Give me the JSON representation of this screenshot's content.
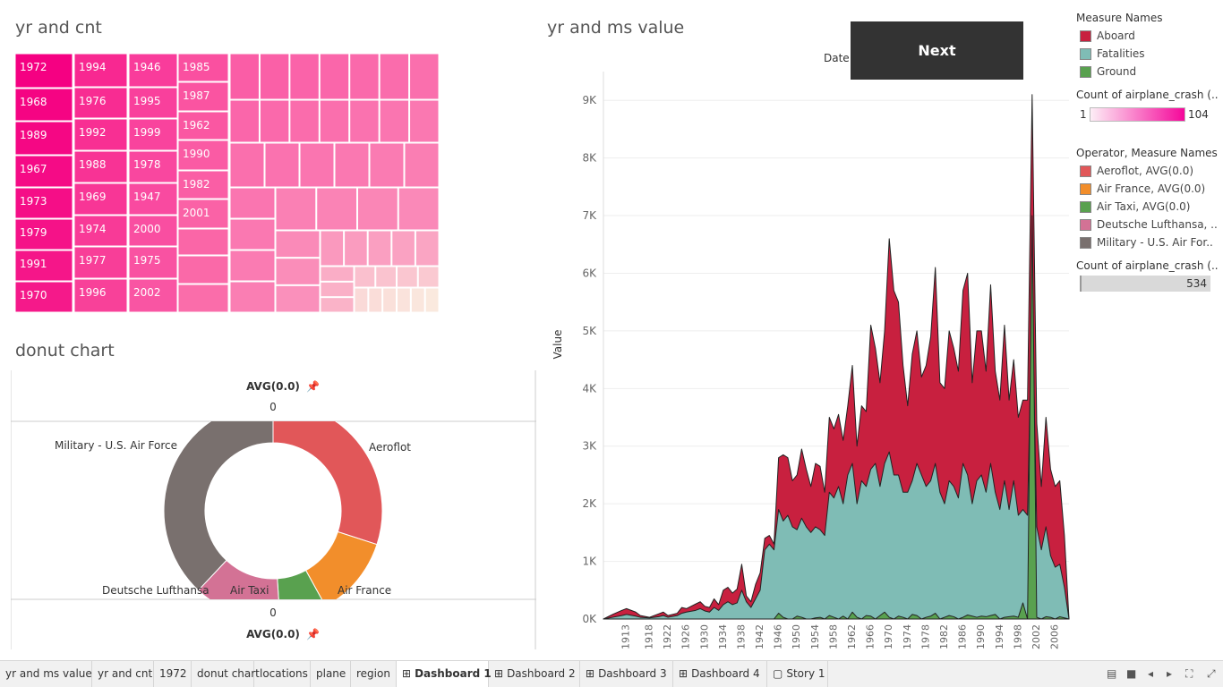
{
  "treemap": {
    "title": "yr and cnt",
    "labels": [
      "1972",
      "1968",
      "1989",
      "1967",
      "1973",
      "1979",
      "1991",
      "1970",
      "1994",
      "1976",
      "1992",
      "1988",
      "1969",
      "1974",
      "1977",
      "1996",
      "1946",
      "1995",
      "1999",
      "1978",
      "1947",
      "2000",
      "1975",
      "2002",
      "1985",
      "1987",
      "1962",
      "1990",
      "1982",
      "2001"
    ]
  },
  "donut": {
    "title": "donut chart",
    "header_label": "AVG(0.0)",
    "header_value": "0",
    "footer_value": "0",
    "footer_label": "AVG(0.0)",
    "pin_icon": "pin-icon",
    "chart_data": {
      "type": "pie",
      "categories": [
        "Aeroflot",
        "Air France",
        "Air Taxi",
        "Deutsche Lufthansa",
        "Military - U.S. Air Force"
      ],
      "values": [
        30,
        12,
        7,
        13,
        38
      ],
      "colors": [
        "#e15759",
        "#f28e2b",
        "#59a14f",
        "#d37295",
        "#79706e"
      ]
    }
  },
  "area": {
    "title": "yr and ms value",
    "date_label": "Date",
    "ylabel": "Value",
    "chart_data": {
      "type": "area",
      "x": [
        1908,
        1910,
        1912,
        1913,
        1915,
        1916,
        1918,
        1920,
        1921,
        1922,
        1924,
        1925,
        1926,
        1928,
        1929,
        1930,
        1931,
        1932,
        1933,
        1934,
        1935,
        1936,
        1937,
        1938,
        1939,
        1940,
        1941,
        1942,
        1943,
        1944,
        1945,
        1946,
        1947,
        1948,
        1949,
        1950,
        1951,
        1952,
        1953,
        1954,
        1955,
        1956,
        1957,
        1958,
        1959,
        1960,
        1961,
        1962,
        1963,
        1964,
        1965,
        1966,
        1967,
        1968,
        1969,
        1970,
        1971,
        1972,
        1973,
        1974,
        1975,
        1976,
        1977,
        1978,
        1979,
        1980,
        1981,
        1982,
        1983,
        1984,
        1985,
        1986,
        1987,
        1988,
        1989,
        1990,
        1991,
        1992,
        1993,
        1994,
        1995,
        1996,
        1997,
        1998,
        1999,
        2000,
        2001,
        2002,
        2003,
        2004,
        2005,
        2006,
        2007,
        2008,
        2009
      ],
      "ylim": [
        0,
        9500
      ],
      "yticks": [
        "0K",
        "1K",
        "2K",
        "3K",
        "4K",
        "5K",
        "6K",
        "7K",
        "8K",
        "9K"
      ],
      "xticks": [
        "1913",
        "1918",
        "1922",
        "1926",
        "1930",
        "1934",
        "1938",
        "1942",
        "1946",
        "1950",
        "1954",
        "1958",
        "1962",
        "1966",
        "1970",
        "1974",
        "1978",
        "1982",
        "1986",
        "1990",
        "1994",
        "1998",
        "2002",
        "2006"
      ],
      "series": [
        {
          "name": "Aboard",
          "color": "#c8203f",
          "values": [
            0,
            80,
            150,
            180,
            120,
            60,
            30,
            90,
            120,
            60,
            100,
            200,
            180,
            260,
            300,
            220,
            200,
            350,
            250,
            500,
            550,
            450,
            520,
            950,
            400,
            300,
            600,
            800,
            1400,
            1450,
            1300,
            2800,
            2850,
            2800,
            2400,
            2500,
            2950,
            2600,
            2300,
            2700,
            2650,
            2200,
            3500,
            3300,
            3550,
            3100,
            3700,
            4400,
            3000,
            3700,
            3600,
            5100,
            4700,
            4100,
            5000,
            6600,
            5700,
            5500,
            4400,
            3700,
            4600,
            5000,
            4200,
            4400,
            4900,
            6100,
            4100,
            4000,
            5000,
            4700,
            4300,
            5700,
            6000,
            4100,
            5000,
            5000,
            4300,
            5800,
            4300,
            3800,
            5100,
            3800,
            4500,
            3500,
            3800,
            3800,
            9100,
            3400,
            2300,
            3500,
            2600,
            2300,
            2400,
            1450,
            0
          ]
        },
        {
          "name": "Fatalities",
          "color": "#7fbcb5",
          "values": [
            0,
            30,
            60,
            80,
            50,
            30,
            20,
            40,
            60,
            30,
            60,
            100,
            120,
            150,
            180,
            140,
            120,
            200,
            150,
            250,
            300,
            250,
            280,
            500,
            300,
            200,
            350,
            500,
            1200,
            1300,
            1200,
            1900,
            1700,
            1800,
            1600,
            1550,
            1750,
            1600,
            1500,
            1600,
            1550,
            1450,
            2200,
            2100,
            2300,
            2000,
            2500,
            2700,
            2000,
            2400,
            2300,
            2600,
            2700,
            2300,
            2700,
            2900,
            2500,
            2500,
            2200,
            2200,
            2400,
            2700,
            2500,
            2300,
            2400,
            2700,
            2200,
            2000,
            2400,
            2300,
            2100,
            2700,
            2500,
            2000,
            2400,
            2500,
            2200,
            2700,
            2200,
            1900,
            2400,
            1900,
            2400,
            1800,
            1900,
            1800,
            5600,
            1600,
            1200,
            1600,
            1100,
            900,
            950,
            550,
            0
          ]
        },
        {
          "name": "Ground",
          "color": "#59a14f",
          "values": [
            0,
            0,
            0,
            0,
            0,
            0,
            0,
            0,
            0,
            0,
            0,
            0,
            0,
            0,
            0,
            0,
            0,
            0,
            0,
            0,
            0,
            0,
            0,
            0,
            0,
            0,
            0,
            0,
            0,
            0,
            0,
            100,
            30,
            0,
            0,
            50,
            30,
            0,
            0,
            20,
            30,
            0,
            60,
            30,
            0,
            50,
            0,
            120,
            30,
            0,
            60,
            50,
            0,
            60,
            120,
            30,
            0,
            50,
            30,
            0,
            80,
            60,
            0,
            30,
            50,
            100,
            0,
            30,
            60,
            40,
            0,
            30,
            70,
            50,
            30,
            50,
            40,
            60,
            80,
            0,
            30,
            40,
            50,
            30,
            280,
            0,
            7000,
            30,
            0,
            40,
            30,
            0,
            40,
            20,
            0
          ]
        }
      ]
    }
  },
  "legends": {
    "measure_title": "Measure Names",
    "measures": [
      {
        "label": "Aboard",
        "color": "#c8203f"
      },
      {
        "label": "Fatalities",
        "color": "#7fbcb5"
      },
      {
        "label": "Ground",
        "color": "#59a14f"
      }
    ],
    "count_title_1": "Count of airplane_crash (..",
    "count_min": "1",
    "count_max": "104",
    "operator_title": "Operator, Measure Names",
    "operators": [
      {
        "label": "Aeroflot, AVG(0.0)",
        "color": "#e15759"
      },
      {
        "label": "Air France, AVG(0.0)",
        "color": "#f28e2b"
      },
      {
        "label": "Air Taxi, AVG(0.0)",
        "color": "#59a14f"
      },
      {
        "label": "Deutsche Lufthansa, ..",
        "color": "#d37295"
      },
      {
        "label": "Military - U.S. Air For..",
        "color": "#79706e"
      }
    ],
    "count_title_2": "Count of airplane_crash (..",
    "count_value_2": "534"
  },
  "next_button": "Next",
  "tabs": [
    {
      "label": "yr and ms value",
      "icon": ""
    },
    {
      "label": "yr and cnt",
      "icon": ""
    },
    {
      "label": "1972",
      "icon": ""
    },
    {
      "label": "donut chart",
      "icon": ""
    },
    {
      "label": "locations",
      "icon": ""
    },
    {
      "label": "plane",
      "icon": ""
    },
    {
      "label": "region",
      "icon": ""
    },
    {
      "label": "Dashboard 1",
      "icon": "⊞",
      "active": true
    },
    {
      "label": "Dashboard 2",
      "icon": "⊞"
    },
    {
      "label": "Dashboard 3",
      "icon": "⊞"
    },
    {
      "label": "Dashboard 4",
      "icon": "⊞"
    },
    {
      "label": "Story 1",
      "icon": "▢"
    }
  ],
  "nav_icons": [
    "grid-view-icon",
    "film-strip-icon",
    "prev-icon",
    "next-icon",
    "fullscreen-icon",
    "present-icon"
  ]
}
